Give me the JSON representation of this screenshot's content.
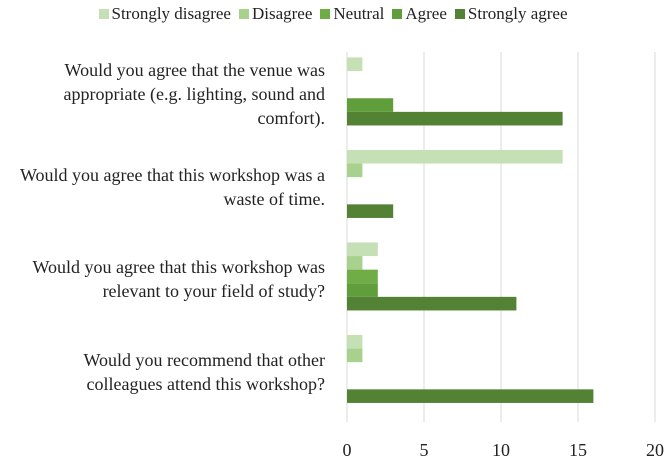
{
  "chart_data": {
    "type": "hbar",
    "categories": [
      "Would you agree that the venue was appropriate (e.g. lighting, sound and comfort).",
      "Would you agree that this workshop was a waste of time.",
      "Would you agree that this workshop was relevant to your field of study?",
      "Would you recommend that other colleagues attend this workshop?"
    ],
    "series": [
      {
        "name": "Strongly disagree",
        "color": "#c5e0b4",
        "values": [
          1,
          14,
          2,
          1
        ]
      },
      {
        "name": "Disagree",
        "color": "#a9d18e",
        "values": [
          0,
          1,
          1,
          1
        ]
      },
      {
        "name": "Neutral",
        "color": "#70ad47",
        "values": [
          0,
          0,
          2,
          0
        ]
      },
      {
        "name": "Agree",
        "color": "#5f9e3a",
        "values": [
          3,
          0,
          2,
          0
        ]
      },
      {
        "name": "Strongly agree",
        "color": "#548235",
        "values": [
          14,
          3,
          11,
          16
        ]
      }
    ],
    "xlim": [
      0,
      20
    ],
    "xticks": [
      0,
      5,
      10,
      15,
      20
    ],
    "grid": true,
    "legend": "top"
  }
}
